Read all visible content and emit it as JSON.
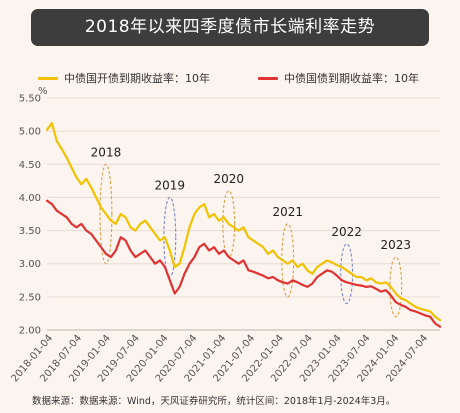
{
  "header": {
    "title": "2018年以来四季度债市长端利率走势"
  },
  "footer": {
    "source": "数据来源：数据来源：Wind，天风证券研究所，统计区间：2018年1月-2024年3月。"
  },
  "colors": {
    "series_1": "#f2c200",
    "series_2": "#e03333",
    "grid": "#e8dcd2"
  },
  "chart_data": {
    "type": "line",
    "title": "2018年以来四季度债市长端利率走势",
    "ylabel": "%",
    "xlabel": "",
    "ylim": [
      2.0,
      5.5
    ],
    "yticks": [
      "2.00",
      "2.50",
      "3.00",
      "3.50",
      "4.00",
      "4.50",
      "5.00",
      "5.50"
    ],
    "xticks": [
      "2018-01-04",
      "2018-07-04",
      "2019-01-04",
      "2019-07-04",
      "2020-01-04",
      "2020-07-04",
      "2021-01-04",
      "2021-07-04",
      "2022-01-04",
      "2022-07-04",
      "2023-01-04",
      "2023-07-04",
      "2024-01-04",
      "2024-07-04"
    ],
    "grid": true,
    "legend_position": "top",
    "x_index_range": [
      0,
      80
    ],
    "series": [
      {
        "name": "中债国开债到期收益率：10年",
        "x": [
          0,
          1,
          2,
          3,
          4,
          5,
          6,
          7,
          8,
          9,
          10,
          11,
          12,
          13,
          14,
          15,
          16,
          17,
          18,
          19,
          20,
          21,
          22,
          23,
          24,
          25,
          26,
          27,
          28,
          29,
          30,
          31,
          32,
          33,
          34,
          35,
          36,
          37,
          38,
          39,
          40,
          41,
          42,
          43,
          44,
          45,
          46,
          47,
          48,
          49,
          50,
          51,
          52,
          53,
          54,
          55,
          56,
          57,
          58,
          59,
          60,
          61,
          62,
          63,
          64,
          65,
          66,
          67,
          68,
          69,
          70,
          71,
          72,
          73,
          74,
          75,
          76,
          77,
          78,
          79,
          80
        ],
        "values": [
          5.02,
          5.12,
          4.85,
          4.73,
          4.6,
          4.45,
          4.3,
          4.2,
          4.28,
          4.15,
          4.0,
          3.85,
          3.75,
          3.65,
          3.6,
          3.75,
          3.7,
          3.55,
          3.5,
          3.6,
          3.65,
          3.55,
          3.45,
          3.35,
          3.4,
          3.2,
          2.95,
          3.0,
          3.25,
          3.55,
          3.75,
          3.85,
          3.9,
          3.7,
          3.75,
          3.65,
          3.7,
          3.6,
          3.55,
          3.5,
          3.55,
          3.4,
          3.35,
          3.3,
          3.25,
          3.15,
          3.2,
          3.1,
          3.05,
          3.0,
          3.05,
          2.95,
          3.0,
          2.9,
          2.85,
          2.95,
          3.0,
          3.05,
          3.02,
          2.98,
          2.95,
          2.9,
          2.85,
          2.8,
          2.8,
          2.75,
          2.78,
          2.72,
          2.7,
          2.72,
          2.65,
          2.55,
          2.48,
          2.45,
          2.4,
          2.35,
          2.32,
          2.3,
          2.28,
          2.2,
          2.15
        ]
      },
      {
        "name": "中债国债到期收益率：10年",
        "x": [
          0,
          1,
          2,
          3,
          4,
          5,
          6,
          7,
          8,
          9,
          10,
          11,
          12,
          13,
          14,
          15,
          16,
          17,
          18,
          19,
          20,
          21,
          22,
          23,
          24,
          25,
          26,
          27,
          28,
          29,
          30,
          31,
          32,
          33,
          34,
          35,
          36,
          37,
          38,
          39,
          40,
          41,
          42,
          43,
          44,
          45,
          46,
          47,
          48,
          49,
          50,
          51,
          52,
          53,
          54,
          55,
          56,
          57,
          58,
          59,
          60,
          61,
          62,
          63,
          64,
          65,
          66,
          67,
          68,
          69,
          70,
          71,
          72,
          73,
          74,
          75,
          76,
          77,
          78,
          79,
          80
        ],
        "values": [
          3.95,
          3.9,
          3.8,
          3.75,
          3.7,
          3.6,
          3.55,
          3.6,
          3.5,
          3.45,
          3.35,
          3.25,
          3.15,
          3.1,
          3.2,
          3.4,
          3.35,
          3.2,
          3.1,
          3.15,
          3.2,
          3.1,
          3.0,
          3.05,
          2.95,
          2.75,
          2.55,
          2.65,
          2.85,
          3.0,
          3.1,
          3.25,
          3.3,
          3.2,
          3.25,
          3.15,
          3.2,
          3.1,
          3.05,
          3.0,
          3.05,
          2.9,
          2.88,
          2.85,
          2.82,
          2.78,
          2.8,
          2.75,
          2.72,
          2.7,
          2.75,
          2.72,
          2.68,
          2.65,
          2.7,
          2.8,
          2.85,
          2.9,
          2.88,
          2.82,
          2.75,
          2.72,
          2.7,
          2.68,
          2.67,
          2.65,
          2.66,
          2.62,
          2.58,
          2.6,
          2.52,
          2.42,
          2.38,
          2.35,
          2.3,
          2.28,
          2.25,
          2.22,
          2.2,
          2.1,
          2.05
        ]
      }
    ],
    "annotations": [
      {
        "label": "2018",
        "x_start": 11,
        "x_end": 13,
        "y_low": 3.0,
        "y_high": 4.5,
        "color": "#d9a04a"
      },
      {
        "label": "2019",
        "x_start": 24,
        "x_end": 26,
        "y_low": 2.8,
        "y_high": 4.0,
        "color": "#7a86c8"
      },
      {
        "label": "2020",
        "x_start": 36,
        "x_end": 38,
        "y_low": 3.1,
        "y_high": 4.1,
        "color": "#d9a04a"
      },
      {
        "label": "2021",
        "x_start": 48,
        "x_end": 50,
        "y_low": 2.5,
        "y_high": 3.6,
        "color": "#d9a04a"
      },
      {
        "label": "2022",
        "x_start": 60,
        "x_end": 62,
        "y_low": 2.4,
        "y_high": 3.3,
        "color": "#7a86c8"
      },
      {
        "label": "2023",
        "x_start": 70,
        "x_end": 72,
        "y_low": 2.2,
        "y_high": 3.1,
        "color": "#d9a04a"
      }
    ]
  }
}
